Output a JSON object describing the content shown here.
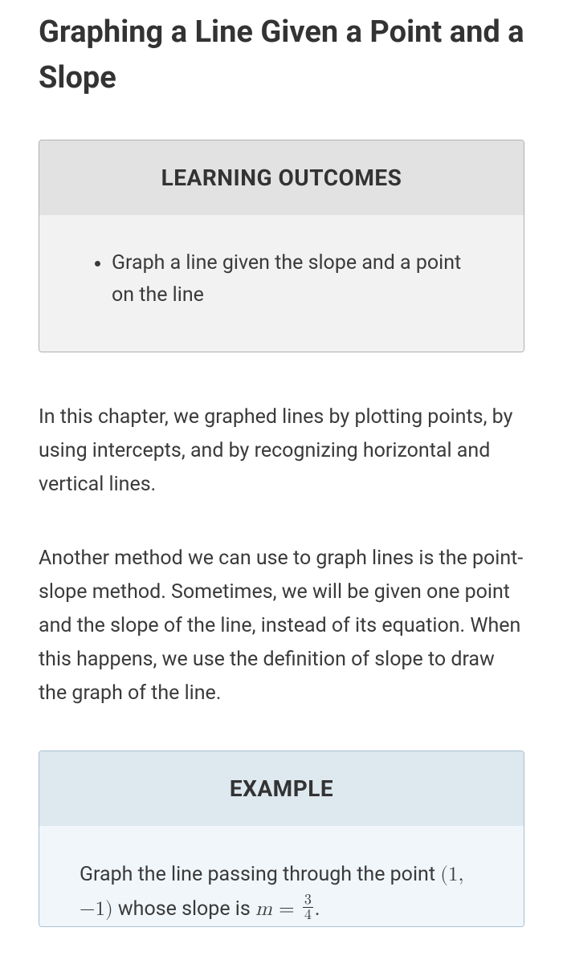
{
  "title": "Graphing a Line Given a Point and a Slope",
  "outcomes": {
    "header": "LEARNING OUTCOMES",
    "items": [
      "Graph a line given the slope and a point on the line"
    ]
  },
  "paragraphs": [
    "In this chapter, we graphed lines by plotting points, by using intercepts, and by recognizing horizontal and vertical lines.",
    "Another method we can use to graph lines is the point-slope method. Sometimes, we will be given one point and the slope of the line, instead of its equation. When this happens, we use the definition of slope to draw the graph of the line."
  ],
  "example": {
    "header": "EXAMPLE",
    "text_before_point": "Graph the line passing through the point ",
    "point": "(1, −1)",
    "text_between": " whose slope is ",
    "slope_var": "m",
    "equals": " = ",
    "frac_num": "3",
    "frac_den": "4",
    "period": "."
  }
}
